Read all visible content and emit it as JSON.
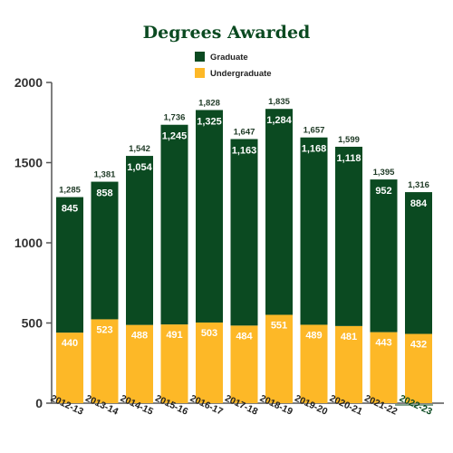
{
  "chart_data": {
    "type": "bar",
    "stacked": true,
    "title": "Degrees Awarded",
    "categories": [
      "2012-13",
      "2013-14",
      "2014-15",
      "2015-16",
      "2016-17",
      "2017-18",
      "2018-19",
      "2019-20",
      "2020-21",
      "2021-22",
      "2022-23"
    ],
    "series": [
      {
        "name": "Undergraduate",
        "color": "#FDB827",
        "values": [
          440,
          523,
          488,
          491,
          503,
          484,
          551,
          489,
          481,
          443,
          432
        ]
      },
      {
        "name": "Graduate",
        "color": "#0B4A21",
        "values": [
          845,
          858,
          1054,
          1245,
          1325,
          1163,
          1284,
          1168,
          1118,
          952,
          884
        ]
      }
    ],
    "totals": [
      "1,285",
      "1,381",
      "1,542",
      "1,736",
      "1,828",
      "1,647",
      "1,835",
      "1,657",
      "1,599",
      "1,395",
      "1,316"
    ],
    "undergrad_labels": [
      "440",
      "523",
      "488",
      "491",
      "503",
      "484",
      "551",
      "489",
      "481",
      "443",
      "432"
    ],
    "grad_labels": [
      "845",
      "858",
      "1,054",
      "1,245",
      "1,325",
      "1,163",
      "1,284",
      "1,168",
      "1,118",
      "952",
      "884"
    ],
    "y_ticks": [
      "0",
      "500",
      "1000",
      "1500",
      "2000"
    ],
    "ylim": [
      0,
      2000
    ],
    "legend_position": "top-center",
    "grid": false,
    "colors": {
      "title": "#0B4A21",
      "axis": "#555555",
      "last_tick": "#0B4A21"
    }
  }
}
